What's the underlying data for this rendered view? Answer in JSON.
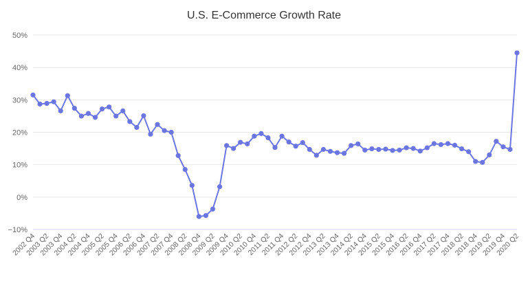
{
  "chart_data": {
    "type": "line",
    "title": "U.S. E-Commerce Growth Rate",
    "xlabel": "",
    "ylabel": "",
    "ylim": [
      -10,
      50
    ],
    "yticks": [
      -10,
      0,
      10,
      20,
      30,
      40,
      50
    ],
    "ytick_suffix": "%",
    "grid": true,
    "legend": "none",
    "color": "#6b76e3",
    "x": [
      "2002 Q4",
      "2003 Q1",
      "2003 Q2",
      "2003 Q3",
      "2003 Q4",
      "2004 Q1",
      "2004 Q2",
      "2004 Q3",
      "2004 Q4",
      "2005 Q1",
      "2005 Q2",
      "2005 Q3",
      "2005 Q4",
      "2006 Q1",
      "2006 Q2",
      "2006 Q3",
      "2006 Q4",
      "2007 Q1",
      "2007 Q2",
      "2007 Q3",
      "2007 Q4",
      "2008 Q1",
      "2008 Q2",
      "2008 Q3",
      "2008 Q4",
      "2009 Q1",
      "2009 Q2",
      "2009 Q3",
      "2009 Q4",
      "2010 Q1",
      "2010 Q2",
      "2010 Q3",
      "2010 Q4",
      "2011 Q1",
      "2011 Q2",
      "2011 Q3",
      "2011 Q4",
      "2012 Q1",
      "2012 Q2",
      "2012 Q3",
      "2012 Q4",
      "2013 Q1",
      "2013 Q2",
      "2013 Q3",
      "2013 Q4",
      "2014 Q1",
      "2014 Q2",
      "2014 Q3",
      "2014 Q4",
      "2015 Q1",
      "2015 Q2",
      "2015 Q3",
      "2015 Q4",
      "2016 Q1",
      "2016 Q2",
      "2016 Q3",
      "2016 Q4",
      "2017 Q1",
      "2017 Q2",
      "2017 Q3",
      "2017 Q4",
      "2018 Q1",
      "2018 Q2",
      "2018 Q3",
      "2018 Q4",
      "2019 Q1",
      "2019 Q2",
      "2019 Q3",
      "2019 Q4",
      "2020 Q1",
      "2020 Q2"
    ],
    "values": [
      31.5,
      28.7,
      28.9,
      29.4,
      26.6,
      31.3,
      27.4,
      25.0,
      25.8,
      24.6,
      27.2,
      27.8,
      25.0,
      26.6,
      23.3,
      21.5,
      25.1,
      19.4,
      22.4,
      20.5,
      20.0,
      12.8,
      8.5,
      3.6,
      -6.0,
      -5.7,
      -3.7,
      3.2,
      15.9,
      15.0,
      16.9,
      16.4,
      18.8,
      19.6,
      18.3,
      15.3,
      18.8,
      17.0,
      15.7,
      16.8,
      14.7,
      12.9,
      14.7,
      14.1,
      13.7,
      13.5,
      15.9,
      16.4,
      14.5,
      14.9,
      14.7,
      14.8,
      14.4,
      14.5,
      15.2,
      15.0,
      14.2,
      15.2,
      16.5,
      16.2,
      16.5,
      16.0,
      14.9,
      14.0,
      11.0,
      10.7,
      13.0,
      17.2,
      15.5,
      14.7,
      44.5
    ],
    "xtick_labels": [
      "2002 Q4",
      "2003 Q2",
      "2003 Q4",
      "2004 Q2",
      "2004 Q4",
      "2005 Q2",
      "2005 Q4",
      "2006 Q2",
      "2006 Q4",
      "2007 Q2",
      "2007 Q4",
      "2008 Q2",
      "2008 Q4",
      "2009 Q2",
      "2009 Q4",
      "2010 Q2",
      "2010 Q4",
      "2011 Q2",
      "2011 Q4",
      "2012 Q2",
      "2012 Q4",
      "2013 Q2",
      "2013 Q4",
      "2014 Q2",
      "2014 Q4",
      "2015 Q2",
      "2015 Q4",
      "2016 Q2",
      "2016 Q4",
      "2017 Q2",
      "2017 Q4",
      "2018 Q2",
      "2018 Q4",
      "2019 Q2",
      "2019 Q4",
      "2020 Q2"
    ]
  }
}
